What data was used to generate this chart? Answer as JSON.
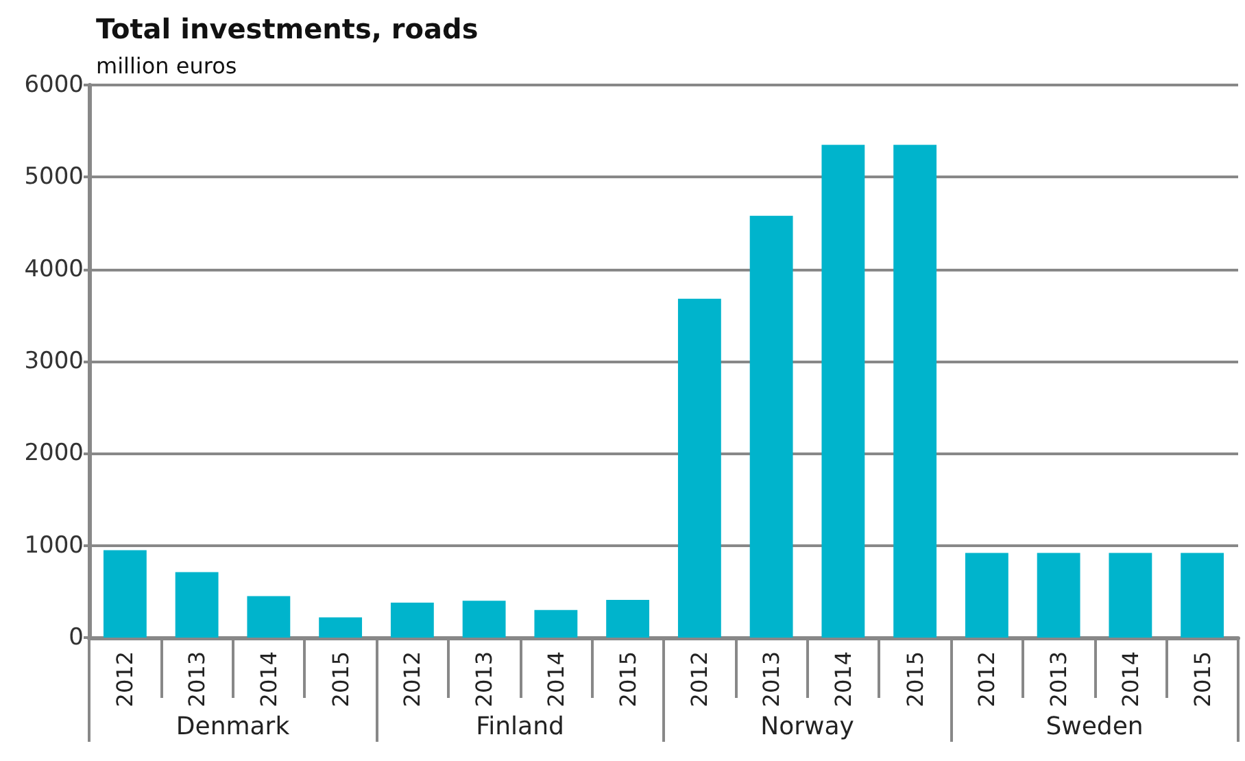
{
  "chart_data": {
    "type": "bar",
    "title": "Total investments, roads",
    "ylabel": "million euros",
    "categories": [
      "2012",
      "2013",
      "2014",
      "2015",
      "2012",
      "2013",
      "2014",
      "2015",
      "2012",
      "2013",
      "2014",
      "2015",
      "2012",
      "2013",
      "2014",
      "2015"
    ],
    "annotations": [
      "Denmark",
      "Finland",
      "Norway",
      "Sweden"
    ],
    "values": [
      950,
      710,
      450,
      220,
      380,
      400,
      300,
      410,
      3680,
      4580,
      5350,
      5350,
      920,
      920,
      920,
      920
    ],
    "color": "#00b4cc",
    "ylim": [
      0,
      6000
    ],
    "yticks": [
      0,
      1000,
      2000,
      3000,
      4000,
      5000,
      6000
    ],
    "grid": "y"
  }
}
